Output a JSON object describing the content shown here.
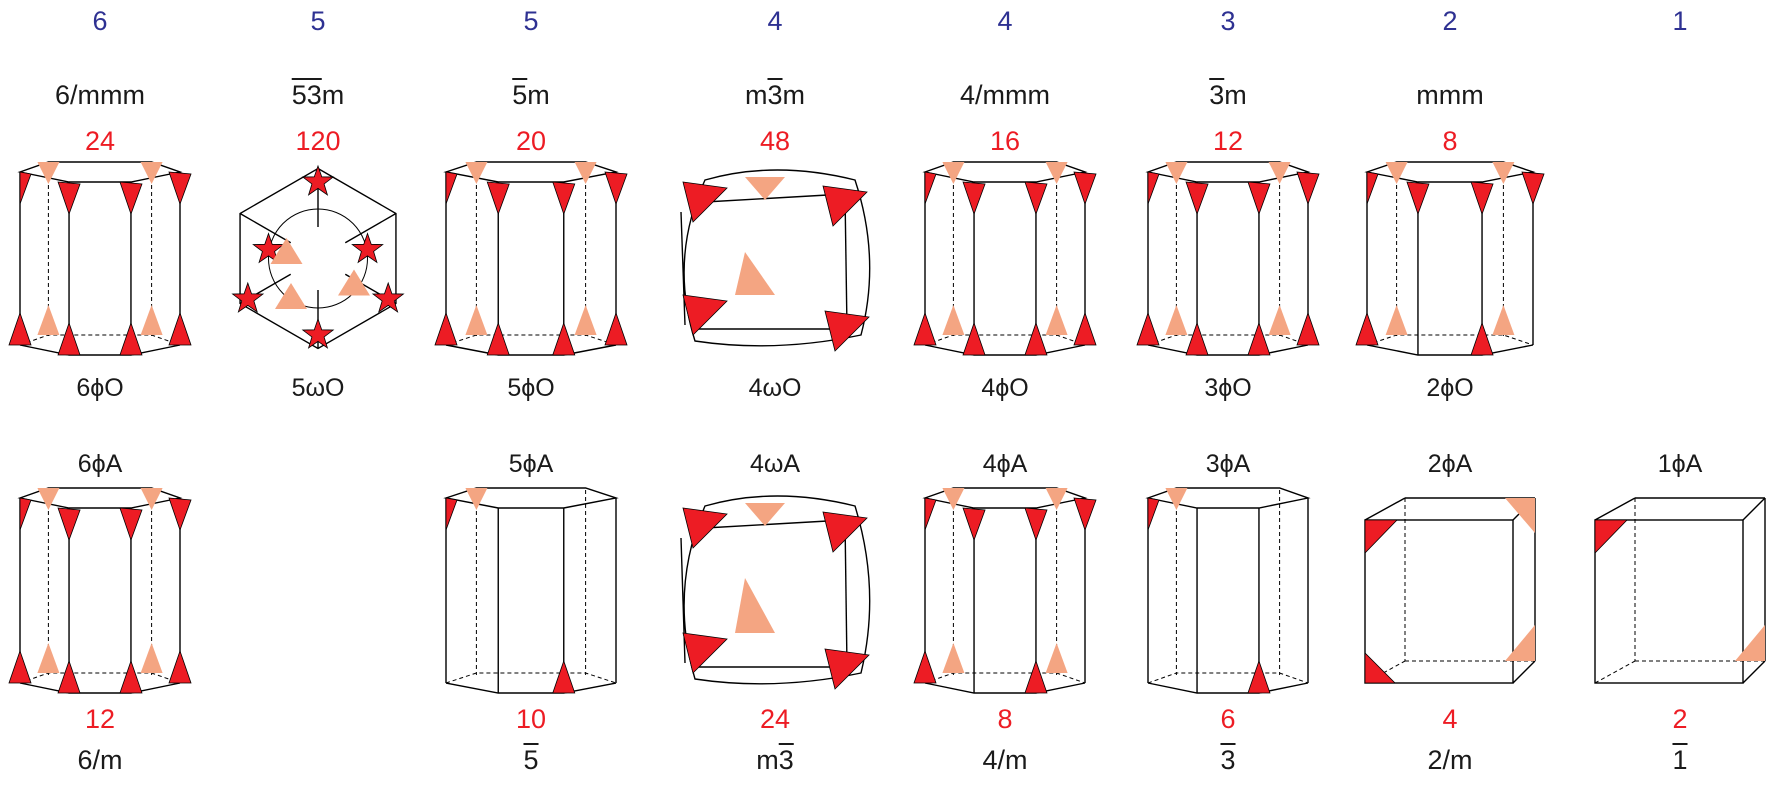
{
  "colors": {
    "order": "#2e3192",
    "count": "#ed1c24",
    "text": "#1a1a1a",
    "front_face": "#ed1c24",
    "back_face": "#f4a582",
    "edge": "#000000"
  },
  "columns": [
    {
      "order": "6",
      "top_group": "6/mmm",
      "top_group_overline": "",
      "top_count": "24",
      "top_name": "6ϕO",
      "bottom_name": "6ϕA",
      "bottom_count": "12",
      "bottom_group": "6/m",
      "bottom_group_overline": ""
    },
    {
      "order": "5",
      "top_group": "5",
      "top_group_overline": "53",
      "top_group_suffix": "m",
      "top_count": "120",
      "top_name": "5ωO",
      "bottom_name": "",
      "bottom_count": "",
      "bottom_group": "",
      "bottom_group_overline": ""
    },
    {
      "order": "5",
      "top_group": "",
      "top_group_overline": "5",
      "top_group_suffix": "m",
      "top_count": "20",
      "top_name": "5ϕO",
      "bottom_name": "5ϕA",
      "bottom_count": "10",
      "bottom_group": "",
      "bottom_group_overline": "5"
    },
    {
      "order": "4",
      "top_group": "m",
      "top_group_overline": "3",
      "top_group_suffix": "m",
      "top_count": "48",
      "top_name": "4ωO",
      "bottom_name": "4ωA",
      "bottom_count": "24",
      "bottom_group": "m",
      "bottom_group_overline": "3"
    },
    {
      "order": "4",
      "top_group": "4/mmm",
      "top_group_overline": "",
      "top_count": "16",
      "top_name": "4ϕO",
      "bottom_name": "4ϕA",
      "bottom_count": "8",
      "bottom_group": "4/m",
      "bottom_group_overline": ""
    },
    {
      "order": "3",
      "top_group": "",
      "top_group_overline": "3",
      "top_group_suffix": "m",
      "top_count": "12",
      "top_name": "3ϕO",
      "bottom_name": "3ϕA",
      "bottom_count": "6",
      "bottom_group": "",
      "bottom_group_overline": "3"
    },
    {
      "order": "2",
      "top_group": "mmm",
      "top_group_overline": "",
      "top_count": "8",
      "top_name": "2ϕO",
      "bottom_name": "2ϕA",
      "bottom_count": "4",
      "bottom_group": "2/m",
      "bottom_group_overline": ""
    },
    {
      "order": "1",
      "top_group": "",
      "top_group_overline": "",
      "top_count": "",
      "top_name": "",
      "bottom_name": "1ϕA",
      "bottom_count": "2",
      "bottom_group": "",
      "bottom_group_overline": "1"
    }
  ],
  "solids": [
    {
      "id": "6phiO",
      "kind": "prism",
      "sides": 6,
      "corner_marks": "all",
      "icosa": false
    },
    {
      "id": "5omegaO",
      "kind": "icosa"
    },
    {
      "id": "5phiO",
      "kind": "prism",
      "sides": 10,
      "corner_marks": "all"
    },
    {
      "id": "4omegaO",
      "kind": "rounded_cube",
      "corner_marks": "all"
    },
    {
      "id": "4phiO",
      "kind": "prism",
      "sides": 8,
      "corner_marks": "all"
    },
    {
      "id": "3phiO",
      "kind": "prism",
      "sides": 6,
      "corner_marks": "all"
    },
    {
      "id": "2phiO",
      "kind": "prism",
      "sides": 6,
      "corner_marks": "half"
    },
    {
      "id": "6phiA",
      "kind": "prism",
      "sides": 6,
      "corner_marks": "all"
    },
    {
      "id": "5phiA",
      "kind": "prism",
      "sides": 10,
      "corner_marks": "sparse"
    },
    {
      "id": "4omegaA",
      "kind": "rounded_cube",
      "corner_marks": "all"
    },
    {
      "id": "4phiA",
      "kind": "prism",
      "sides": 8,
      "corner_marks": "half"
    },
    {
      "id": "3phiA",
      "kind": "prism",
      "sides": 6,
      "corner_marks": "sparse"
    },
    {
      "id": "2phiA",
      "kind": "cube",
      "corner_marks": "two"
    },
    {
      "id": "1phiA",
      "kind": "cube",
      "corner_marks": "one"
    }
  ]
}
